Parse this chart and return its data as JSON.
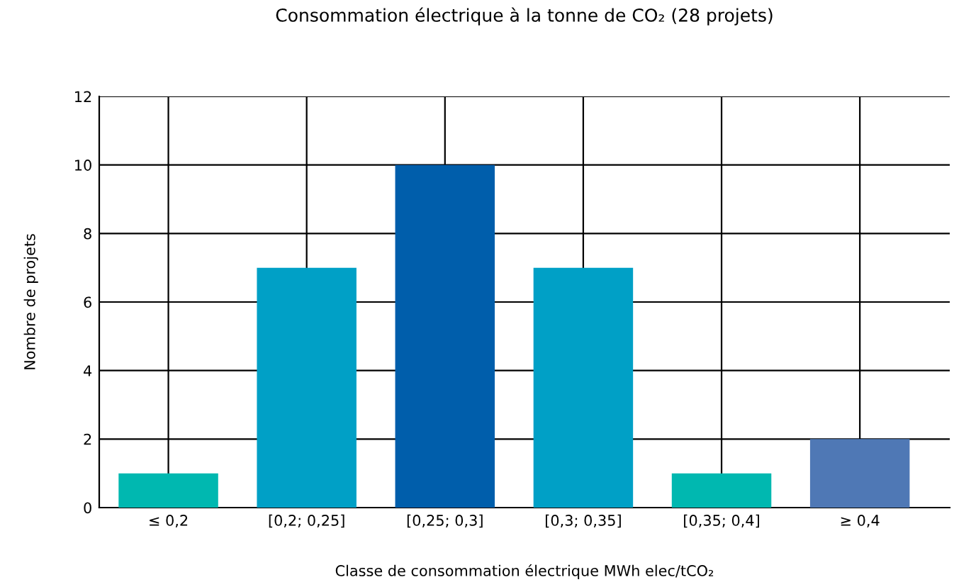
{
  "chart_data": {
    "type": "bar",
    "title": "Consommation électrique à la tonne de CO₂ (28 projets)",
    "xlabel": "Classe de consommation électrique MWh elec/tCO₂",
    "ylabel": "Nombre de projets",
    "categories": [
      "≤ 0,2",
      "[0,2; 0,25]",
      "[0,25; 0,3]",
      "[0,3; 0,35]",
      "[0,35; 0,4]",
      "≥ 0,4"
    ],
    "values": [
      1,
      7,
      10,
      7,
      1,
      2
    ],
    "colors": [
      "#00b8b0",
      "#00a0c6",
      "#005eab",
      "#00a0c6",
      "#00b8b0",
      "#4f78b5"
    ],
    "ylim": [
      0,
      12
    ],
    "yticks": [
      0,
      2,
      4,
      6,
      8,
      10,
      12
    ],
    "grid": true
  }
}
